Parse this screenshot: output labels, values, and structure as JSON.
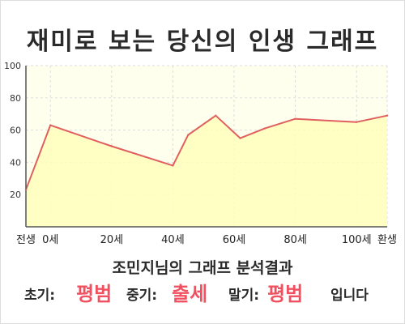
{
  "colors": {
    "plot_background": "#ffffee",
    "fill": "#ffffbb",
    "line": "#e06060",
    "result": "#f05060",
    "grid": "#dddddd"
  },
  "title": "재미로 보는 당신의 인생 그래프",
  "chart_data": {
    "type": "area",
    "title": "재미로 보는 당신의 인생 그래프",
    "x": [
      -8,
      0,
      20,
      40,
      45,
      54,
      62,
      70,
      80,
      100,
      110
    ],
    "x_tick_values": [
      -8,
      0,
      20,
      40,
      60,
      80,
      100,
      110
    ],
    "x_tick_labels": [
      "전생",
      "0세",
      "20세",
      "40세",
      "60세",
      "80세",
      "100세",
      "환생"
    ],
    "xlim": [
      -8,
      110
    ],
    "y": [
      23,
      63,
      50,
      38,
      57,
      69,
      55,
      61,
      67,
      65,
      69
    ],
    "ylim": [
      0,
      100
    ],
    "y_ticks": [
      20,
      40,
      60,
      80,
      100
    ],
    "grid": true,
    "xlabel": "",
    "ylabel": ""
  },
  "result": {
    "heading": "조민지님의 그래프 분석결과",
    "early_label": "초기:",
    "early_value": "평범",
    "middle_label": "중기:",
    "middle_value": "출세",
    "late_label": "말기:",
    "late_value": "평범",
    "suffix": "입니다"
  }
}
